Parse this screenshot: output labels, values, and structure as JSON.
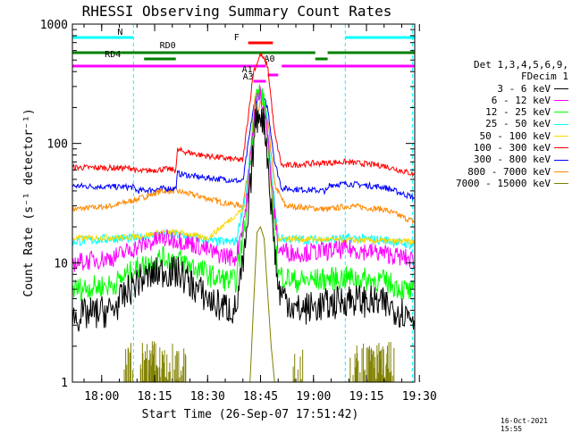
{
  "chart_data": {
    "type": "line",
    "title": "RHESSI Observing Summary Count Rates",
    "xlabel": "Start Time (26-Sep-07 17:51:42)",
    "ylabel": "Count Rate (s⁻¹ detector⁻¹)",
    "scale": {
      "y": "log",
      "x": "time"
    },
    "xlim": [
      "17:51:42",
      "19:28:40"
    ],
    "ylim": [
      1,
      1000
    ],
    "x_ticks": [
      "18:00",
      "18:15",
      "18:30",
      "18:45",
      "19:00",
      "19:15",
      "19:30"
    ],
    "y_ticks": [
      "1",
      "10",
      "100",
      "1000"
    ],
    "legend": {
      "header": [
        "Det 1,3,4,5,6,9,",
        "FDecim 1"
      ],
      "placement": "right",
      "entries": [
        {
          "label": "3 - 6 keV",
          "color": "#000000"
        },
        {
          "label": "6 - 12 keV",
          "color": "#ff00ff"
        },
        {
          "label": "12 - 25 keV",
          "color": "#00ff00"
        },
        {
          "label": "25 - 50 keV",
          "color": "#00ffff"
        },
        {
          "label": "50 - 100 keV",
          "color": "#ffd700"
        },
        {
          "label": "100 - 300 keV",
          "color": "#ff0000"
        },
        {
          "label": "300 - 800 keV",
          "color": "#0000ff"
        },
        {
          "label": "800 - 7000 keV",
          "color": "#ff8800"
        },
        {
          "label": "7000 - 15000 keV",
          "color": "#808000"
        }
      ]
    },
    "flag_bars": [
      {
        "label": "N",
        "color": "#00ffff",
        "segments": [
          [
            "17:51:42",
            "18:09:00"
          ],
          [
            "19:09:00",
            "19:28:40"
          ]
        ]
      },
      {
        "label": "RD0",
        "color": "#008000",
        "segments": [
          [
            "17:51:42",
            "19:00:30"
          ],
          [
            "19:04:00",
            "19:28:40"
          ]
        ]
      },
      {
        "label": "RD4",
        "color": "#008000",
        "segments": [
          [
            "18:12:00",
            "18:21:00"
          ],
          [
            "19:00:30",
            "19:04:00"
          ]
        ]
      },
      {
        "label": "F",
        "color": "#ff0000",
        "segments": [
          [
            "18:41:30",
            "18:48:30"
          ]
        ]
      },
      {
        "label": "A0",
        "color": "#ff00ff",
        "segments": [
          [
            "17:51:42",
            "18:46:30"
          ],
          [
            "18:51:00",
            "19:28:40"
          ]
        ]
      },
      {
        "label": "A1",
        "color": "#ff00ff",
        "segments": [
          [
            "18:47:00",
            "18:50:00"
          ]
        ]
      },
      {
        "label": "A3",
        "color": "#ff00ff",
        "segments": [
          [
            "18:43:00",
            "18:46:30"
          ]
        ]
      }
    ],
    "night_lines": [
      "17:51:42",
      "18:09:00",
      "19:09:00",
      "19:28:00"
    ],
    "series": [
      {
        "name": "3 - 6 keV",
        "color": "#000000",
        "noise": 0.28,
        "points": [
          [
            "17:51:42",
            3.5
          ],
          [
            "18:03:00",
            4.0
          ],
          [
            "18:10:00",
            7.0
          ],
          [
            "18:17:00",
            8.5
          ],
          [
            "18:22:00",
            8.2
          ],
          [
            "18:27:00",
            6.0
          ],
          [
            "18:32:00",
            4.5
          ],
          [
            "18:38:00",
            4.0
          ],
          [
            "18:41:00",
            15
          ],
          [
            "18:43:30",
            150
          ],
          [
            "18:45:00",
            190
          ],
          [
            "18:46:30",
            120
          ],
          [
            "18:48:00",
            30
          ],
          [
            "18:50:00",
            6
          ],
          [
            "18:55:00",
            4.0
          ],
          [
            "19:05:00",
            4.5
          ],
          [
            "19:10:00",
            5.0
          ],
          [
            "19:20:00",
            4.5
          ],
          [
            "19:28:40",
            3.5
          ]
        ]
      },
      {
        "name": "6 - 12 keV",
        "color": "#ff00ff",
        "noise": 0.16,
        "points": [
          [
            "17:51:42",
            10
          ],
          [
            "18:03:00",
            11
          ],
          [
            "18:10:00",
            13.5
          ],
          [
            "18:17:00",
            16
          ],
          [
            "18:22:00",
            15.5
          ],
          [
            "18:27:00",
            14
          ],
          [
            "18:32:00",
            12
          ],
          [
            "18:38:00",
            11
          ],
          [
            "18:41:00",
            30
          ],
          [
            "18:43:30",
            220
          ],
          [
            "18:45:00",
            260
          ],
          [
            "18:46:30",
            170
          ],
          [
            "18:48:00",
            50
          ],
          [
            "18:50:00",
            13
          ],
          [
            "18:55:00",
            12
          ],
          [
            "19:10:00",
            13
          ],
          [
            "19:20:00",
            12
          ],
          [
            "19:28:40",
            10.5
          ]
        ]
      },
      {
        "name": "12 - 25 keV",
        "color": "#00ff00",
        "noise": 0.2,
        "points": [
          [
            "17:51:42",
            6
          ],
          [
            "18:03:00",
            6.5
          ],
          [
            "18:10:00",
            9
          ],
          [
            "18:17:00",
            11
          ],
          [
            "18:22:00",
            10.5
          ],
          [
            "18:27:00",
            9
          ],
          [
            "18:32:00",
            7.5
          ],
          [
            "18:38:00",
            7
          ],
          [
            "18:41:00",
            25
          ],
          [
            "18:43:30",
            240
          ],
          [
            "18:45:00",
            280
          ],
          [
            "18:46:30",
            180
          ],
          [
            "18:48:00",
            40
          ],
          [
            "18:50:00",
            8
          ],
          [
            "18:55:00",
            7
          ],
          [
            "19:10:00",
            7.5
          ],
          [
            "19:20:00",
            7
          ],
          [
            "19:28:40",
            5.5
          ]
        ]
      },
      {
        "name": "25 - 50 keV",
        "color": "#00ffff",
        "noise": 0.08,
        "points": [
          [
            "17:51:42",
            15
          ],
          [
            "18:03:00",
            16
          ],
          [
            "18:10:00",
            16
          ],
          [
            "18:17:00",
            17.5
          ],
          [
            "18:22:00",
            17
          ],
          [
            "18:27:00",
            16
          ],
          [
            "18:32:00",
            15
          ],
          [
            "18:38:00",
            15
          ],
          [
            "18:41:00",
            40
          ],
          [
            "18:43:30",
            230
          ],
          [
            "18:45:00",
            270
          ],
          [
            "18:46:30",
            200
          ],
          [
            "18:48:00",
            60
          ],
          [
            "18:50:00",
            16
          ],
          [
            "19:00:00",
            15.5
          ],
          [
            "19:10:00",
            16
          ],
          [
            "19:20:00",
            15.5
          ],
          [
            "19:28:40",
            14
          ]
        ]
      },
      {
        "name": "50 - 100 keV",
        "color": "#ffd700",
        "noise": 0.05,
        "points": [
          [
            "17:51:42",
            16
          ],
          [
            "18:10:00",
            16.5
          ],
          [
            "18:17:00",
            18
          ],
          [
            "18:22:00",
            18
          ],
          [
            "18:30:00",
            16
          ],
          [
            "18:41:00",
            30
          ],
          [
            "18:43:30",
            260
          ],
          [
            "18:45:00",
            290
          ],
          [
            "18:46:30",
            190
          ],
          [
            "18:48:00",
            40
          ],
          [
            "18:50:00",
            16
          ],
          [
            "19:28:40",
            15
          ]
        ]
      },
      {
        "name": "100 - 300 keV",
        "color": "#ff0000",
        "noise": 0.05,
        "points": [
          [
            "17:51:42",
            63
          ],
          [
            "18:09:00",
            62
          ],
          [
            "18:10:00",
            58
          ],
          [
            "18:18:00",
            61
          ],
          [
            "18:21:00",
            60
          ],
          [
            "18:21:30",
            88
          ],
          [
            "18:28:00",
            80
          ],
          [
            "18:35:00",
            75
          ],
          [
            "18:40:00",
            72
          ],
          [
            "18:43:00",
            400
          ],
          [
            "18:45:00",
            560
          ],
          [
            "18:47:00",
            450
          ],
          [
            "18:49:00",
            120
          ],
          [
            "18:51:00",
            65
          ],
          [
            "19:00:00",
            68
          ],
          [
            "19:09:00",
            70
          ],
          [
            "19:20:00",
            65
          ],
          [
            "19:28:40",
            55
          ]
        ]
      },
      {
        "name": "300 - 800 keV",
        "color": "#0000ff",
        "noise": 0.05,
        "points": [
          [
            "17:51:42",
            44
          ],
          [
            "18:09:00",
            43
          ],
          [
            "18:10:00",
            40
          ],
          [
            "18:18:00",
            42
          ],
          [
            "18:21:00",
            42
          ],
          [
            "18:21:30",
            56
          ],
          [
            "18:28:00",
            52
          ],
          [
            "18:35:00",
            50
          ],
          [
            "18:40:00",
            48
          ],
          [
            "18:43:00",
            200
          ],
          [
            "18:45:00",
            270
          ],
          [
            "18:47:00",
            200
          ],
          [
            "18:49:00",
            70
          ],
          [
            "18:51:00",
            42
          ],
          [
            "19:04:00",
            40
          ],
          [
            "19:04:30",
            45
          ],
          [
            "19:10:00",
            46
          ],
          [
            "19:20:00",
            43
          ],
          [
            "19:28:40",
            35
          ]
        ]
      },
      {
        "name": "800 - 7000 keV",
        "color": "#ff8800",
        "noise": 0.05,
        "points": [
          [
            "17:51:42",
            28
          ],
          [
            "18:03:00",
            30
          ],
          [
            "18:10:00",
            34
          ],
          [
            "18:17:00",
            40
          ],
          [
            "18:21:00",
            40
          ],
          [
            "18:28:00",
            36
          ],
          [
            "18:34:00",
            32
          ],
          [
            "18:40:00",
            30
          ],
          [
            "18:43:00",
            120
          ],
          [
            "18:45:00",
            230
          ],
          [
            "18:47:00",
            160
          ],
          [
            "18:49:00",
            45
          ],
          [
            "18:52:00",
            30
          ],
          [
            "19:04:00",
            28
          ],
          [
            "19:10:00",
            30
          ],
          [
            "19:20:00",
            28
          ],
          [
            "19:28:40",
            22
          ]
        ]
      },
      {
        "name": "7000 - 15000 keV",
        "color": "#808000",
        "noise": 0.0,
        "points": [
          [
            "18:42:00",
            1
          ],
          [
            "18:44:00",
            18
          ],
          [
            "18:45:00",
            20
          ],
          [
            "18:46:00",
            16
          ],
          [
            "18:48:00",
            2
          ],
          [
            "18:49:00",
            1
          ]
        ]
      }
    ],
    "bursts_7000": [
      [
        "18:06:00",
        "18:09:00"
      ],
      [
        "18:11:00",
        "18:24:00"
      ],
      [
        "18:54:00",
        "18:57:00"
      ],
      [
        "19:10:00",
        "19:23:00"
      ]
    ]
  },
  "timestamp": "16-Oct-2021 15:55"
}
